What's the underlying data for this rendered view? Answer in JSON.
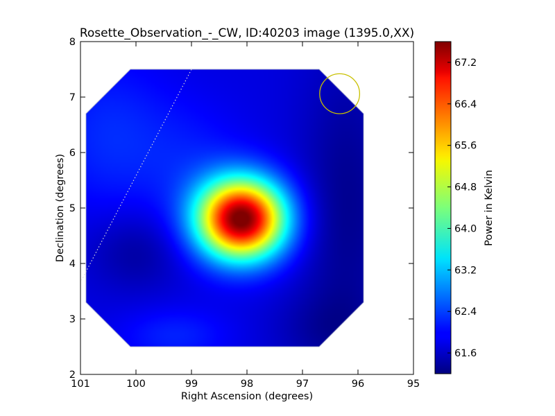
{
  "chart_data": {
    "type": "heatmap",
    "title": "Rosette_Observation_-_CW, ID:40203 image (1395.0,XX)",
    "xlabel": "Right Ascension (degrees)",
    "ylabel": "Declination (degrees)",
    "xlim": [
      101,
      95
    ],
    "ylim": [
      2,
      8
    ],
    "xticks": [
      101,
      100,
      99,
      98,
      97,
      96,
      95
    ],
    "xtick_labels": [
      "101",
      "100",
      "99",
      "98",
      "97",
      "96",
      "95"
    ],
    "yticks": [
      2,
      3,
      4,
      5,
      6,
      7,
      8
    ],
    "ytick_labels": [
      "2",
      "3",
      "4",
      "5",
      "6",
      "7",
      "8"
    ],
    "colorbar": {
      "label": "Power in Kelvin",
      "range": [
        61.2,
        67.6
      ],
      "ticks": [
        61.6,
        62.4,
        63.2,
        64.0,
        64.8,
        65.6,
        66.4,
        67.2
      ],
      "tick_labels": [
        "61.6",
        "62.4",
        "63.2",
        "64.0",
        "64.8",
        "65.6",
        "66.4",
        "67.2"
      ],
      "colormap": "jet"
    },
    "field_outline_radec": [
      [
        100.1,
        7.5
      ],
      [
        96.7,
        7.5
      ],
      [
        95.9,
        6.7
      ],
      [
        95.9,
        3.3
      ],
      [
        96.7,
        2.5
      ],
      [
        100.1,
        2.5
      ],
      [
        100.9,
        3.3
      ],
      [
        100.9,
        6.7
      ]
    ],
    "background_level": 61.8,
    "sources": [
      {
        "ra": 98.1,
        "dec": 4.8,
        "amplitude": 5.9,
        "sigma_ra": 0.55,
        "sigma_dec": 0.5
      },
      {
        "ra": 100.5,
        "dec": 6.3,
        "amplitude": 0.45,
        "sigma_ra": 0.8,
        "sigma_dec": 1.0
      },
      {
        "ra": 99.0,
        "dec": 5.8,
        "amplitude": 0.3,
        "sigma_ra": 0.7,
        "sigma_dec": 0.8
      },
      {
        "ra": 99.3,
        "dec": 2.7,
        "amplitude": 0.4,
        "sigma_ra": 0.7,
        "sigma_dec": 0.35
      },
      {
        "ra": 100.0,
        "dec": 4.2,
        "amplitude": -0.4,
        "sigma_ra": 0.6,
        "sigma_dec": 0.5
      },
      {
        "ra": 96.2,
        "dec": 5.0,
        "amplitude": -0.5,
        "sigma_ra": 0.6,
        "sigma_dec": 2.0
      },
      {
        "ra": 96.6,
        "dec": 2.8,
        "amplitude": -0.3,
        "sigma_ra": 0.7,
        "sigma_dec": 0.5
      }
    ],
    "beam_circle": {
      "ra": 96.33,
      "dec": 7.06,
      "radius_deg": 0.36,
      "color": "#c8c000"
    },
    "dotted_line": {
      "points": [
        [
          99.0,
          7.5
        ],
        [
          100.98,
          3.7
        ]
      ],
      "color": "#d9d9d9"
    }
  }
}
